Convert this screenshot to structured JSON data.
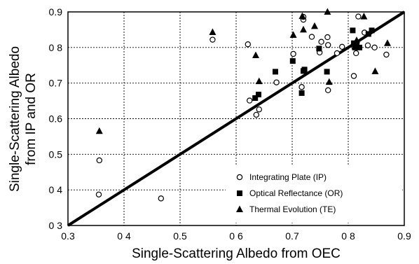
{
  "chart_data": {
    "type": "scatter",
    "xlabel": "Single-Scattering Albedo from OEC",
    "ylabel_line1": "Single-Scattering Albedo",
    "ylabel_line2": "from IP and OR",
    "xlim": [
      0.3,
      0.9
    ],
    "ylim": [
      0.3,
      0.9
    ],
    "xticks": [
      0.3,
      0.4,
      0.5,
      0.6,
      0.7,
      0.8,
      0.9
    ],
    "yticks": [
      0.3,
      0.4,
      0.5,
      0.6,
      0.7,
      0.8,
      0.9
    ],
    "x_tick_labels": [
      "0.3",
      "0 4",
      "0.5",
      "0 6",
      "0.7",
      "0 8",
      "0.9"
    ],
    "y_tick_labels": [
      "0 3",
      "0 4",
      "0.5",
      "0.6",
      "0.7",
      "0 8",
      "0.9"
    ],
    "grid": true,
    "grid_style": "dotted",
    "legend_position": "bottom-right",
    "line": {
      "x": [
        0.3,
        0.9
      ],
      "y": [
        0.3,
        0.9
      ],
      "color": "#000000"
    },
    "series": [
      {
        "name": "Integrating Plate (IP)",
        "marker": "open-circle",
        "points": [
          [
            0.355,
            0.387
          ],
          [
            0.356,
            0.483
          ],
          [
            0.466,
            0.376
          ],
          [
            0.558,
            0.822
          ],
          [
            0.621,
            0.809
          ],
          [
            0.624,
            0.651
          ],
          [
            0.636,
            0.611
          ],
          [
            0.641,
            0.626
          ],
          [
            0.672,
            0.702
          ],
          [
            0.702,
            0.782
          ],
          [
            0.717,
            0.689
          ],
          [
            0.72,
            0.878
          ],
          [
            0.72,
            0.886
          ],
          [
            0.735,
            0.83
          ],
          [
            0.749,
            0.786
          ],
          [
            0.752,
            0.816
          ],
          [
            0.763,
            0.829
          ],
          [
            0.764,
            0.807
          ],
          [
            0.764,
            0.68
          ],
          [
            0.78,
            0.784
          ],
          [
            0.789,
            0.802
          ],
          [
            0.81,
            0.72
          ],
          [
            0.814,
            0.784
          ],
          [
            0.818,
            0.887
          ],
          [
            0.829,
            0.842
          ],
          [
            0.835,
            0.806
          ],
          [
            0.847,
            0.8
          ],
          [
            0.868,
            0.78
          ]
        ]
      },
      {
        "name": "Optical Reflectance (OR)",
        "marker": "filled-square",
        "points": [
          [
            0.634,
            0.658
          ],
          [
            0.64,
            0.668
          ],
          [
            0.67,
            0.732
          ],
          [
            0.701,
            0.762
          ],
          [
            0.717,
            0.672
          ],
          [
            0.72,
            0.734
          ],
          [
            0.722,
            0.738
          ],
          [
            0.748,
            0.797
          ],
          [
            0.762,
            0.732
          ],
          [
            0.808,
            0.848
          ],
          [
            0.81,
            0.812
          ],
          [
            0.812,
            0.8
          ],
          [
            0.815,
            0.806
          ],
          [
            0.82,
            0.8
          ],
          [
            0.836,
            0.838
          ],
          [
            0.842,
            0.848
          ]
        ]
      },
      {
        "name": "Thermal Evolution (TE)",
        "marker": "filled-triangle",
        "points": [
          [
            0.356,
            0.565
          ],
          [
            0.558,
            0.843
          ],
          [
            0.635,
            0.778
          ],
          [
            0.641,
            0.705
          ],
          [
            0.702,
            0.835
          ],
          [
            0.718,
            0.888
          ],
          [
            0.72,
            0.85
          ],
          [
            0.74,
            0.86
          ],
          [
            0.763,
            0.9
          ],
          [
            0.766,
            0.703
          ],
          [
            0.812,
            0.803
          ],
          [
            0.815,
            0.82
          ],
          [
            0.828,
            0.887
          ],
          [
            0.848,
            0.733
          ],
          [
            0.87,
            0.812
          ]
        ]
      }
    ]
  }
}
